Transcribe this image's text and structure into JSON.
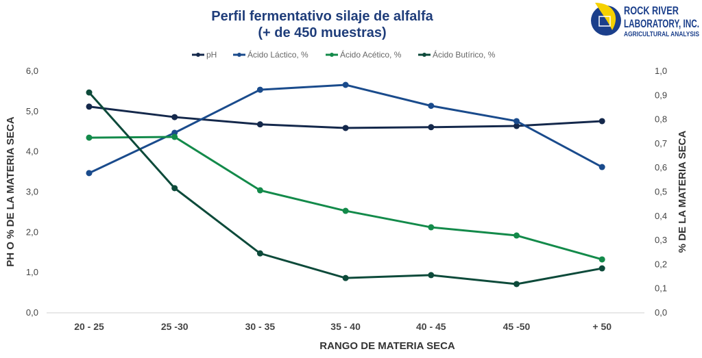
{
  "chart_data": {
    "type": "line",
    "title": [
      "Perfil fermentativo silaje de alfalfa",
      "(+ de 450 muestras)"
    ],
    "xlabel": "RANGO DE MATERIA SECA",
    "ylabel": "PH O % DE LA MATERIA SECA",
    "y2label": "% DE LA MATERIA SECA",
    "categories": [
      "20 - 25",
      "25 -30",
      "30 - 35",
      "35 - 40",
      "40 - 45",
      "45 -50",
      "+ 50"
    ],
    "ylim": [
      0,
      6
    ],
    "y2lim": [
      0,
      1
    ],
    "yticks": [
      "0,0",
      "1,0",
      "2,0",
      "3,0",
      "4,0",
      "5,0",
      "6,0"
    ],
    "y2ticks": [
      "0,0",
      "0,1",
      "0,2",
      "0,3",
      "0,4",
      "0,5",
      "0,6",
      "0,7",
      "0,8",
      "0,9",
      "1,0"
    ],
    "legend_position": "top",
    "series": [
      {
        "name": "pH",
        "axis": "left",
        "color": "#14284b",
        "values": [
          5.12,
          4.86,
          4.68,
          4.59,
          4.61,
          4.64,
          4.76
        ]
      },
      {
        "name": "Ácido Láctico, %",
        "axis": "left",
        "color": "#1a4b8c",
        "values": [
          3.47,
          4.47,
          5.54,
          5.66,
          5.14,
          4.76,
          3.62
        ]
      },
      {
        "name": "Ácido Acético, %",
        "axis": "right",
        "color": "#138a4a",
        "values": [
          0.725,
          0.728,
          0.507,
          0.422,
          0.354,
          0.32,
          0.221
        ]
      },
      {
        "name": "Ácido Butírico, %",
        "axis": "right",
        "color": "#0d4a3a",
        "values": [
          0.912,
          0.516,
          0.246,
          0.144,
          0.156,
          0.119,
          0.184
        ]
      }
    ]
  },
  "logo": {
    "line1": "ROCK RIVER",
    "line2": "LABORATORY, INC.",
    "line3": "AGRICULTURAL ANALYSIS"
  }
}
